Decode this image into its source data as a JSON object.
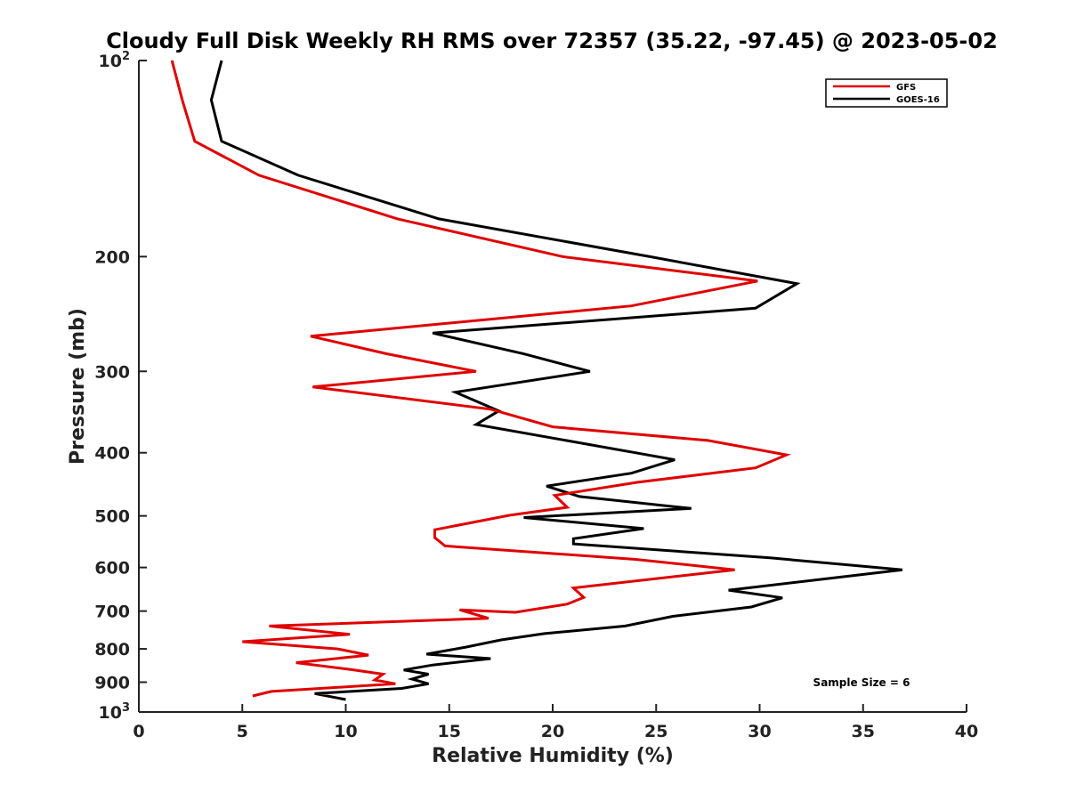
{
  "chart_data": {
    "type": "line",
    "title": "Cloudy Full Disk Weekly RH RMS over 72357 (35.22, -97.45) @ 2023-05-02",
    "xlabel": "Relative Humidity (%)",
    "ylabel": "Pressure (mb)",
    "xlim": [
      0,
      40
    ],
    "ylim": [
      100,
      1000
    ],
    "y_scale": "log",
    "y_reversed": true,
    "x_ticks": [
      0,
      5,
      10,
      15,
      20,
      25,
      30,
      35,
      40
    ],
    "y_ticks": [
      {
        "value": 100,
        "label": "10",
        "sup": "2"
      },
      {
        "value": 200,
        "label": "200"
      },
      {
        "value": 300,
        "label": "300"
      },
      {
        "value": 400,
        "label": "400"
      },
      {
        "value": 500,
        "label": "500"
      },
      {
        "value": 600,
        "label": "600"
      },
      {
        "value": 700,
        "label": "700"
      },
      {
        "value": 800,
        "label": "800"
      },
      {
        "value": 900,
        "label": "900"
      },
      {
        "value": 1000,
        "label": "10",
        "sup": "3"
      }
    ],
    "grid": false,
    "legend_position": "top-right",
    "series": [
      {
        "name": "GFS",
        "color": "#e00000",
        "points": [
          [
            1.6,
            100
          ],
          [
            2.1,
            115
          ],
          [
            2.7,
            133
          ],
          [
            5.8,
            150
          ],
          [
            12.5,
            175
          ],
          [
            20.5,
            200
          ],
          [
            29.9,
            218
          ],
          [
            23.8,
            238
          ],
          [
            8.3,
            265
          ],
          [
            12.0,
            282
          ],
          [
            16.3,
            300
          ],
          [
            8.4,
            317
          ],
          [
            17.0,
            343
          ],
          [
            20.0,
            365
          ],
          [
            27.5,
            383
          ],
          [
            31.3,
            403
          ],
          [
            29.8,
            422
          ],
          [
            24.1,
            444
          ],
          [
            20.1,
            465
          ],
          [
            20.7,
            485
          ],
          [
            17.9,
            499
          ],
          [
            14.3,
            525
          ],
          [
            14.3,
            540
          ],
          [
            14.8,
            556
          ],
          [
            24.0,
            583
          ],
          [
            28.8,
            605
          ],
          [
            21.0,
            645
          ],
          [
            21.5,
            667
          ],
          [
            20.7,
            683
          ],
          [
            18.2,
            703
          ],
          [
            15.5,
            697
          ],
          [
            16.9,
            718
          ],
          [
            6.3,
            738
          ],
          [
            10.2,
            760
          ],
          [
            5.0,
            780
          ],
          [
            9.6,
            800
          ],
          [
            11.1,
            818
          ],
          [
            7.6,
            840
          ],
          [
            10.2,
            860
          ],
          [
            11.8,
            875
          ],
          [
            11.4,
            893
          ],
          [
            12.4,
            905
          ],
          [
            6.4,
            930
          ],
          [
            5.5,
            945
          ]
        ]
      },
      {
        "name": "GOES-16",
        "color": "#000000",
        "points": [
          [
            4.0,
            100
          ],
          [
            3.5,
            115
          ],
          [
            4.0,
            133
          ],
          [
            7.7,
            150
          ],
          [
            14.5,
            175
          ],
          [
            24.7,
            200
          ],
          [
            31.8,
            220
          ],
          [
            29.8,
            240
          ],
          [
            14.2,
            262
          ],
          [
            18.6,
            282
          ],
          [
            21.8,
            300
          ],
          [
            15.3,
            323
          ],
          [
            17.4,
            345
          ],
          [
            16.3,
            362
          ],
          [
            24.0,
            400
          ],
          [
            25.9,
            410
          ],
          [
            23.8,
            430
          ],
          [
            19.7,
            450
          ],
          [
            21.3,
            467
          ],
          [
            26.7,
            487
          ],
          [
            18.6,
            503
          ],
          [
            24.4,
            523
          ],
          [
            21.0,
            542
          ],
          [
            21.0,
            552
          ],
          [
            30.5,
            580
          ],
          [
            36.9,
            605
          ],
          [
            28.5,
            650
          ],
          [
            31.1,
            668
          ],
          [
            29.6,
            690
          ],
          [
            25.8,
            713
          ],
          [
            23.5,
            738
          ],
          [
            19.6,
            758
          ],
          [
            17.5,
            775
          ],
          [
            15.8,
            795
          ],
          [
            13.9,
            815
          ],
          [
            17.0,
            828
          ],
          [
            14.2,
            847
          ],
          [
            12.8,
            862
          ],
          [
            14.0,
            875
          ],
          [
            13.2,
            890
          ],
          [
            14.0,
            905
          ],
          [
            12.7,
            920
          ],
          [
            8.5,
            937
          ],
          [
            10.0,
            957
          ]
        ]
      }
    ],
    "legend": [
      {
        "label": "GFS",
        "color": "#e00000"
      },
      {
        "label": "GOES-16",
        "color": "#000000"
      }
    ],
    "annotation": "Sample Size = 6"
  }
}
